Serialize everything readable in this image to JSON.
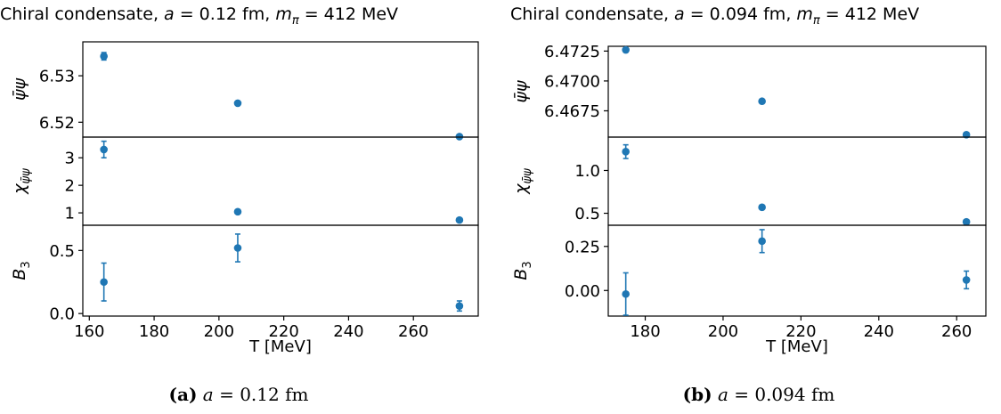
{
  "chart_data": [
    {
      "type": "scatter",
      "title_prefix": "Chiral condensate, ",
      "title_a": "a",
      "title_eq1": " = 0.12 fm, ",
      "title_m": "m",
      "title_sub": "π",
      "title_eq2": " = 412 MeV",
      "xlabel": "T [MeV]",
      "xlim": [
        158,
        280
      ],
      "xticks": [
        160,
        180,
        200,
        220,
        240,
        260
      ],
      "caption_tag": "(a)",
      "caption_a": "a",
      "caption_rest": " = 0.12 fm",
      "panels": [
        {
          "ylabel": "ψ̄ψ",
          "ylim": [
            6.5168,
            6.5373
          ],
          "yticks": [
            6.52,
            6.53
          ],
          "ytick_labels": [
            "6.52",
            "6.53"
          ],
          "x": [
            164.5,
            205.8,
            274.2
          ],
          "y": [
            6.5342,
            6.5241,
            6.5169
          ],
          "yerr": [
            0.0008,
            0.0002,
            0.0002
          ]
        },
        {
          "ylabel": "χψ̄ψ",
          "ylim": [
            0.55,
            3.75
          ],
          "yticks": [
            1,
            2,
            3
          ],
          "ytick_labels": [
            "1",
            "2",
            "3"
          ],
          "x": [
            164.5,
            205.8,
            274.2
          ],
          "y": [
            3.3,
            1.04,
            0.74
          ],
          "yerr": [
            0.3,
            0.05,
            0.04
          ]
        },
        {
          "ylabel": "B3",
          "ylim": [
            -0.02,
            0.7
          ],
          "yticks": [
            0.0,
            0.5
          ],
          "ytick_labels": [
            "0.0",
            "0.5"
          ],
          "x": [
            164.5,
            205.8,
            274.2
          ],
          "y": [
            0.25,
            0.52,
            0.06
          ],
          "yerr": [
            0.15,
            0.11,
            0.04
          ]
        }
      ]
    },
    {
      "type": "scatter",
      "title_prefix": "Chiral condensate, ",
      "title_a": "a",
      "title_eq1": " = 0.094 fm, ",
      "title_m": "m",
      "title_sub": "π",
      "title_eq2": " = 412 MeV",
      "xlabel": "T [MeV]",
      "xlim": [
        170.5,
        267.5
      ],
      "xticks": [
        180,
        200,
        220,
        240,
        260
      ],
      "caption_tag": "(b)",
      "caption_a": "a",
      "caption_rest": " = 0.094 fm",
      "panels": [
        {
          "ylabel": "ψ̄ψ",
          "ylim": [
            6.4653,
            6.4729
          ],
          "yticks": [
            6.4675,
            6.47,
            6.4725
          ],
          "ytick_labels": [
            "6.4675",
            "6.4700",
            "6.4725"
          ],
          "x": [
            175.0,
            210.0,
            262.5
          ],
          "y": [
            6.4726,
            6.4683,
            6.4655
          ],
          "yerr": [
            0.0001,
            0.0001,
            0.0001
          ]
        },
        {
          "ylabel": "χψ̄ψ",
          "ylim": [
            0.36,
            1.39
          ],
          "yticks": [
            0.5,
            1.0
          ],
          "ytick_labels": [
            "0.5",
            "1.0"
          ],
          "x": [
            175.0,
            210.0,
            262.5
          ],
          "y": [
            1.22,
            0.57,
            0.4
          ],
          "yerr": [
            0.08,
            0.01,
            0.01
          ]
        },
        {
          "ylabel": "B3",
          "ylim": [
            -0.145,
            0.37
          ],
          "yticks": [
            0.0,
            0.25
          ],
          "ytick_labels": [
            "0.00",
            "0.25"
          ],
          "x": [
            175.0,
            210.0,
            262.5
          ],
          "y": [
            -0.02,
            0.28,
            0.06
          ],
          "yerr": [
            0.12,
            0.065,
            0.05
          ]
        }
      ]
    }
  ],
  "colors": {
    "marker": "#1f77b4",
    "axes": "#000000"
  }
}
